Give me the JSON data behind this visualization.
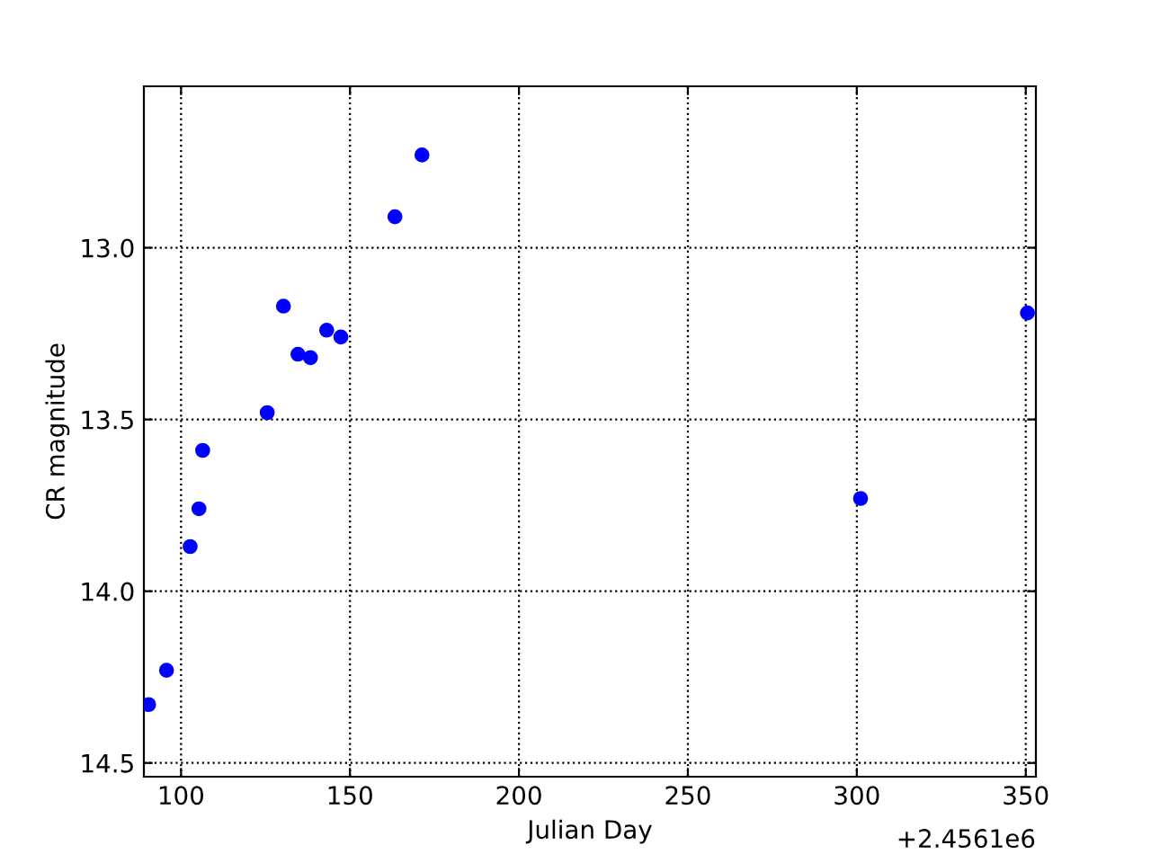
{
  "chart_data": {
    "type": "scatter",
    "xlabel": "Julian Day",
    "ylabel": "CR magnitude",
    "x": [
      90.4,
      95.7,
      102.7,
      105.3,
      106.4,
      125.5,
      130.3,
      134.6,
      138.3,
      143.1,
      147.3,
      163.3,
      171.3,
      301.1,
      350.5
    ],
    "series": [
      {
        "color": "#0000ff",
        "values": [
          14.33,
          14.23,
          13.87,
          13.76,
          13.59,
          13.48,
          13.17,
          13.31,
          13.32,
          13.24,
          13.26,
          12.91,
          12.73,
          13.73,
          13.19
        ]
      }
    ],
    "xlim": [
      89,
      353
    ],
    "ylim": [
      14.54,
      12.53
    ],
    "xticks": [
      100,
      150,
      200,
      250,
      300,
      350
    ],
    "yticks": [
      {
        "value": 13.0,
        "label": "13.0"
      },
      {
        "value": 13.5,
        "label": "13.5"
      },
      {
        "value": 14.0,
        "label": "14.0"
      },
      {
        "value": 14.5,
        "label": "14.5"
      }
    ],
    "annotations": [
      "+2.4561e6"
    ],
    "grid": true,
    "marker": "circle",
    "legend": false
  }
}
